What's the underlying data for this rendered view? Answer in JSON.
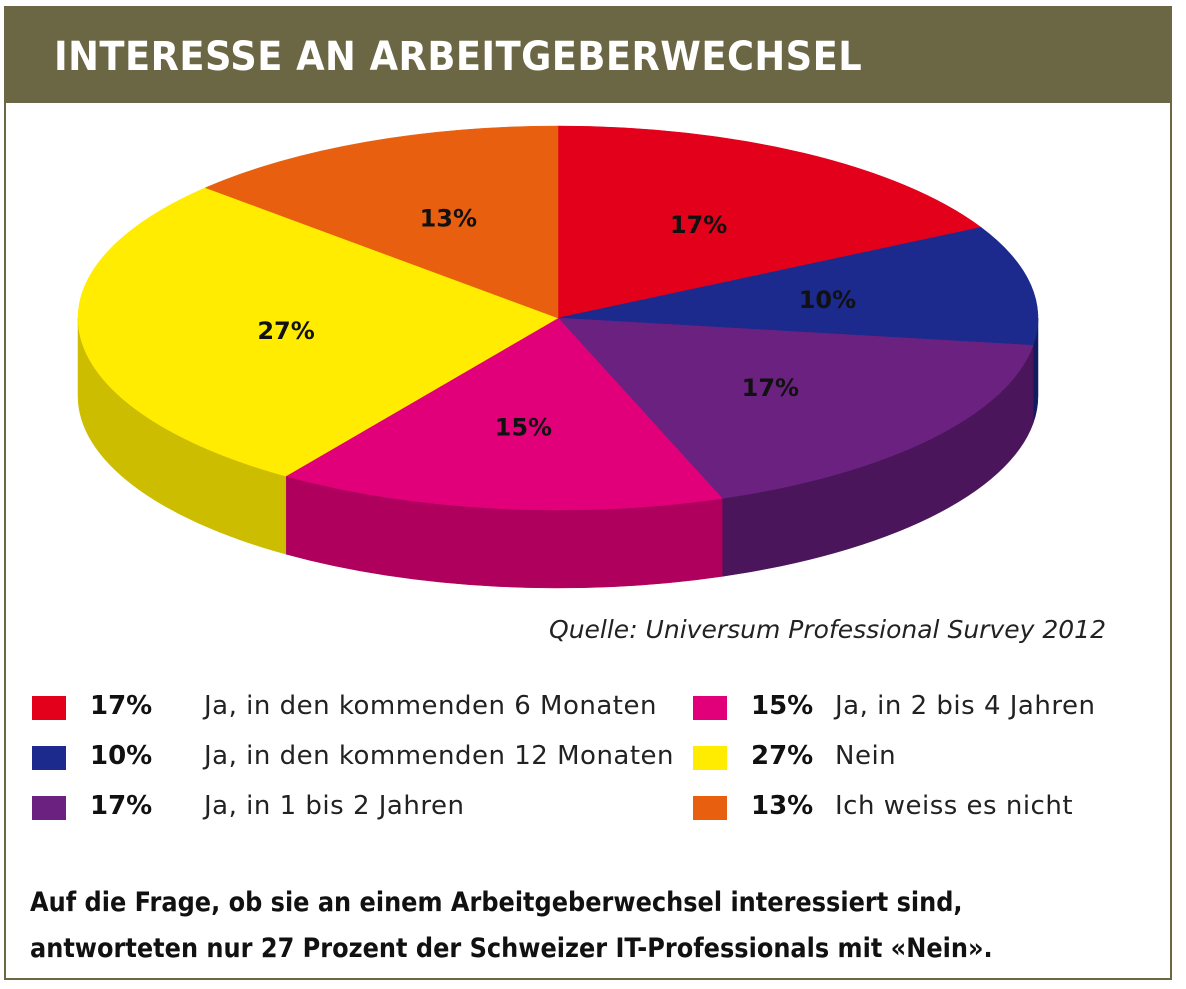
{
  "title": "INTERESSE AN ARBEITGEBERWECHSEL",
  "source": "Quelle: Universum Professional Survey 2012",
  "caption": {
    "line1": "Auf die Frage, ob sie an einem Arbeitgeberwechsel interessiert sind,",
    "line2": "antworteten nur 27 Prozent der Schweizer IT-Professionals mit «Nein»."
  },
  "chart_data": {
    "type": "pie",
    "style": "3d",
    "title": "INTERESSE AN ARBEITGEBERWECHSEL",
    "slices": [
      {
        "label": "Ja, in den kommenden 6 Monaten",
        "value": 17,
        "value_label": "17%",
        "color": "#e2001a",
        "side_color": "#a8001a"
      },
      {
        "label": "Ja, in den kommenden 12 Monaten",
        "value": 10,
        "value_label": "10%",
        "color": "#1b2a8c",
        "side_color": "#111c60"
      },
      {
        "label": "Ja, in 1 bis 2 Jahren",
        "value": 17,
        "value_label": "17%",
        "color": "#6a2180",
        "side_color": "#4a155a"
      },
      {
        "label": "Ja, in 2 bis 4 Jahren",
        "value": 15,
        "value_label": "15%",
        "color": "#e2007a",
        "side_color": "#b0005e"
      },
      {
        "label": "Nein",
        "value": 27,
        "value_label": "27%",
        "color": "#ffec00",
        "side_color": "#cdbd00"
      },
      {
        "label": "Ich weiss es nicht",
        "value": 13,
        "value_label": "13%",
        "color": "#e8600f",
        "side_color": "#b04a0a"
      }
    ],
    "legend": {
      "left": [
        0,
        1,
        2
      ],
      "right": [
        3,
        4,
        5
      ]
    }
  }
}
